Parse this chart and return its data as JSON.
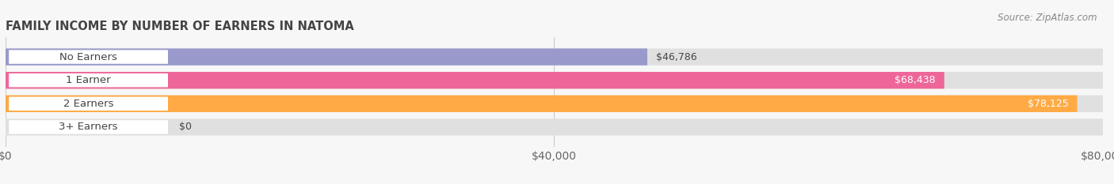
{
  "title": "FAMILY INCOME BY NUMBER OF EARNERS IN NATOMA",
  "source": "Source: ZipAtlas.com",
  "categories": [
    "No Earners",
    "1 Earner",
    "2 Earners",
    "3+ Earners"
  ],
  "values": [
    46786,
    68438,
    78125,
    0
  ],
  "bar_colors": [
    "#9999cc",
    "#ee6699",
    "#ffaa44",
    "#f4a0a0"
  ],
  "bar_bg_color": "#e0e0e0",
  "xlim": [
    0,
    80000
  ],
  "xticks": [
    0,
    40000,
    80000
  ],
  "xtick_labels": [
    "$0",
    "$40,000",
    "$80,000"
  ],
  "background_color": "#f7f7f7",
  "bar_height": 0.72,
  "title_fontsize": 10.5,
  "tick_fontsize": 10,
  "label_fontsize": 9.5,
  "value_fontsize": 9
}
